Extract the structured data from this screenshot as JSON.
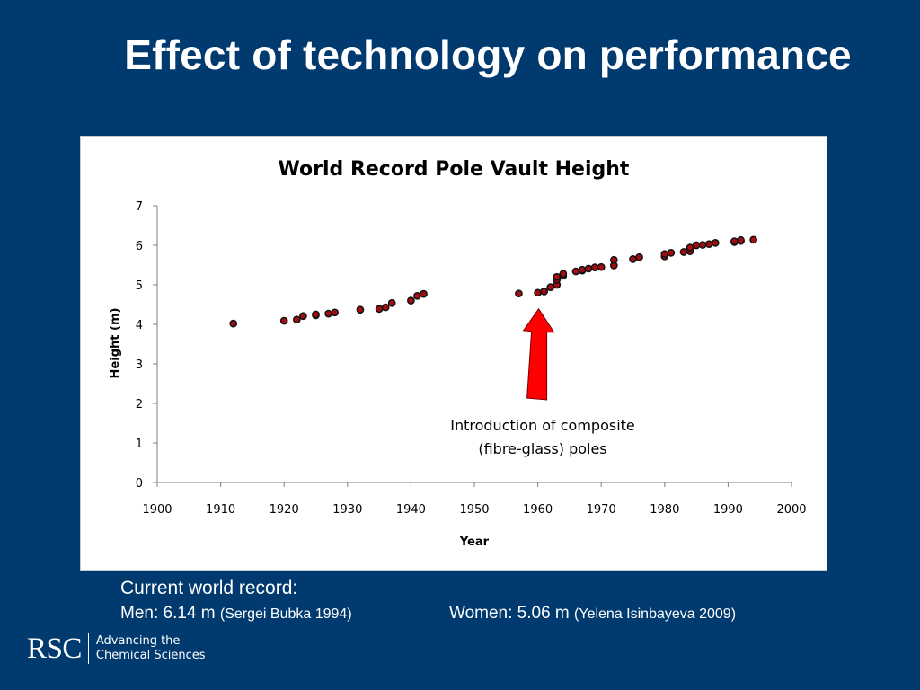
{
  "slide": {
    "title": "Effect of technology on performance"
  },
  "chart_data": {
    "type": "scatter",
    "title": "World Record Pole Vault Height",
    "xlabel": "Year",
    "ylabel": "Height (m)",
    "xlim": [
      1900,
      2000
    ],
    "ylim": [
      0,
      7
    ],
    "xticks": [
      1900,
      1910,
      1920,
      1930,
      1940,
      1950,
      1960,
      1970,
      1980,
      1990,
      2000
    ],
    "yticks": [
      0,
      1,
      2,
      3,
      4,
      5,
      6,
      7
    ],
    "grid": false,
    "legend": "none",
    "marker_color": "#a30d12",
    "points": [
      [
        1912,
        4.02
      ],
      [
        1920,
        4.09
      ],
      [
        1922,
        4.12
      ],
      [
        1923,
        4.21
      ],
      [
        1925,
        4.23
      ],
      [
        1925,
        4.25
      ],
      [
        1927,
        4.27
      ],
      [
        1928,
        4.3
      ],
      [
        1932,
        4.37
      ],
      [
        1935,
        4.39
      ],
      [
        1936,
        4.43
      ],
      [
        1937,
        4.54
      ],
      [
        1940,
        4.6
      ],
      [
        1941,
        4.72
      ],
      [
        1942,
        4.77
      ],
      [
        1957,
        4.78
      ],
      [
        1960,
        4.8
      ],
      [
        1961,
        4.83
      ],
      [
        1962,
        4.94
      ],
      [
        1963,
        5.0
      ],
      [
        1963,
        5.13
      ],
      [
        1963,
        5.2
      ],
      [
        1964,
        5.23
      ],
      [
        1964,
        5.28
      ],
      [
        1966,
        5.34
      ],
      [
        1967,
        5.36
      ],
      [
        1967,
        5.38
      ],
      [
        1968,
        5.41
      ],
      [
        1969,
        5.44
      ],
      [
        1970,
        5.45
      ],
      [
        1972,
        5.49
      ],
      [
        1972,
        5.63
      ],
      [
        1975,
        5.65
      ],
      [
        1976,
        5.7
      ],
      [
        1980,
        5.72
      ],
      [
        1980,
        5.78
      ],
      [
        1981,
        5.81
      ],
      [
        1983,
        5.83
      ],
      [
        1984,
        5.85
      ],
      [
        1984,
        5.94
      ],
      [
        1985,
        6.0
      ],
      [
        1986,
        6.01
      ],
      [
        1987,
        6.03
      ],
      [
        1988,
        6.06
      ],
      [
        1991,
        6.08
      ],
      [
        1991,
        6.1
      ],
      [
        1992,
        6.11
      ],
      [
        1992,
        6.13
      ],
      [
        1994,
        6.14
      ]
    ],
    "annotation": {
      "lines": [
        "Introduction of composite",
        "(fibre-glass) poles"
      ],
      "arrow_target": [
        1960,
        4.8
      ],
      "arrow_color": "#ff0000"
    }
  },
  "records": {
    "heading": "Current world record:",
    "men_label": "Men: 6.14 m",
    "men_holder": "(Sergei Bubka 1994)",
    "women_label": "Women: 5.06 m",
    "women_holder": "(Yelena Isinbayeva 2009)"
  },
  "logo": {
    "mark": "RSC",
    "tagline_line1": "Advancing the",
    "tagline_line2": "Chemical Sciences"
  }
}
